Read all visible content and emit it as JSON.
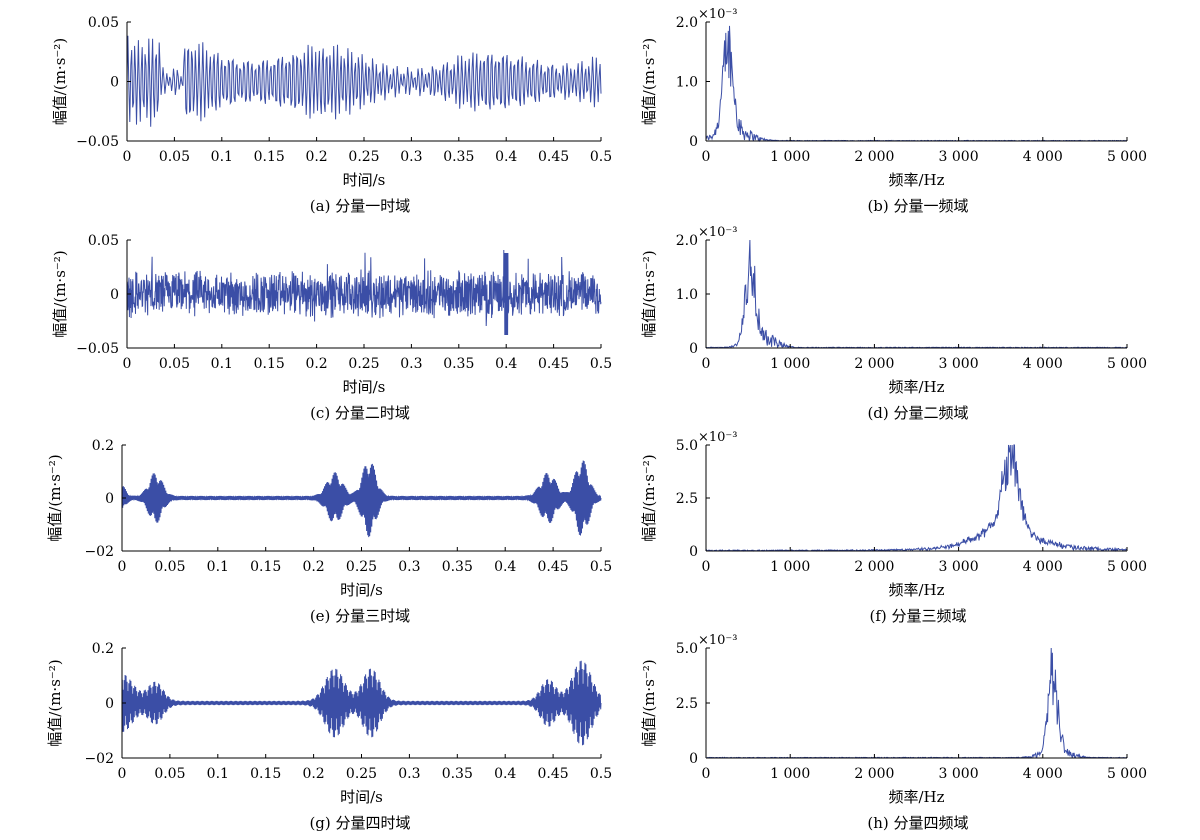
{
  "chart_data": [
    {
      "id": "a",
      "type": "line",
      "domain": "time",
      "caption": "(a) 分量一时域",
      "xlabel": "时间/s",
      "ylabel": "幅值/(m·s⁻²)",
      "xlim": [
        0,
        0.5
      ],
      "ylim": [
        -0.05,
        0.05
      ],
      "xticks": [
        "0",
        "0.05",
        "0.1",
        "0.15",
        "0.2",
        "0.25",
        "0.3",
        "0.35",
        "0.4",
        "0.45",
        "0.5"
      ],
      "yticks": [
        "0.05",
        "0",
        "−0.05"
      ],
      "series": [
        {
          "x": [
            0,
            0.05,
            0.1,
            0.15,
            0.2,
            0.25,
            0.3,
            0.35,
            0.4,
            0.45,
            0.5
          ],
          "y": [
            0.035,
            0.005,
            0.02,
            0.03,
            0.035,
            0.02,
            0.025,
            0.02,
            0.03,
            0.025,
            0.015
          ]
        }
      ]
    },
    {
      "id": "b",
      "type": "line",
      "domain": "freq",
      "caption": "(b) 分量一频域",
      "xlabel": "频率/Hz",
      "ylabel": "幅值/(m·s⁻²)",
      "multiplier": "×10⁻³",
      "xlim": [
        0,
        5000
      ],
      "ylim": [
        0,
        2.0
      ],
      "xticks": [
        "0",
        "1 000",
        "2 000",
        "3 000",
        "4 000",
        "5 000"
      ],
      "yticks": [
        "2.0",
        "1.0",
        "0"
      ],
      "series": [
        {
          "x": [
            100,
            200,
            250,
            300,
            400,
            600,
            1000
          ],
          "y": [
            0.2,
            1.2,
            2.0,
            1.4,
            0.5,
            0.1,
            0.02
          ]
        }
      ]
    },
    {
      "id": "c",
      "type": "line",
      "domain": "time",
      "caption": "(c) 分量二时域",
      "xlabel": "时间/s",
      "ylabel": "幅值/(m·s⁻²)",
      "xlim": [
        0,
        0.5
      ],
      "ylim": [
        -0.05,
        0.05
      ],
      "xticks": [
        "0",
        "0.05",
        "0.1",
        "0.15",
        "0.2",
        "0.25",
        "0.3",
        "0.35",
        "0.4",
        "0.45",
        "0.5"
      ],
      "yticks": [
        "0.05",
        "0",
        "−0.05"
      ],
      "series": [
        {
          "x": [
            0,
            0.1,
            0.2,
            0.3,
            0.4,
            0.5
          ],
          "y": [
            0.02,
            0.025,
            0.02,
            0.02,
            0.04,
            0.02
          ]
        }
      ]
    },
    {
      "id": "d",
      "type": "line",
      "domain": "freq",
      "caption": "(d) 分量二频域",
      "xlabel": "频率/Hz",
      "ylabel": "幅值/(m·s⁻²)",
      "multiplier": "×10⁻³",
      "xlim": [
        0,
        5000
      ],
      "ylim": [
        0,
        2.0
      ],
      "xticks": [
        "0",
        "1 000",
        "2 000",
        "3 000",
        "4 000",
        "5 000"
      ],
      "yticks": [
        "2.0",
        "1.0",
        "0"
      ],
      "series": [
        {
          "x": [
            300,
            450,
            530,
            600,
            700,
            1000
          ],
          "y": [
            0.2,
            1.2,
            2.0,
            1.0,
            0.3,
            0.05
          ]
        }
      ]
    },
    {
      "id": "e",
      "type": "line",
      "domain": "time",
      "caption": "(e) 分量三时域",
      "xlabel": "时间/s",
      "ylabel": "幅值/(m·s⁻²)",
      "xlim": [
        0,
        0.5
      ],
      "ylim": [
        -0.2,
        0.2
      ],
      "xticks": [
        "0",
        "0.05",
        "0.1",
        "0.15",
        "0.2",
        "0.25",
        "0.3",
        "0.35",
        "0.4",
        "0.45",
        "0.5"
      ],
      "yticks": [
        "0.2",
        "0",
        "−02"
      ],
      "series": [
        {
          "x": [
            0.035,
            0.22,
            0.26,
            0.445,
            0.48
          ],
          "y": [
            0.09,
            0.09,
            0.14,
            0.09,
            0.14
          ]
        }
      ]
    },
    {
      "id": "f",
      "type": "line",
      "domain": "freq",
      "caption": "(f) 分量三频域",
      "xlabel": "频率/Hz",
      "ylabel": "幅值/(m·s⁻²)",
      "multiplier": "×10⁻³",
      "xlim": [
        0,
        5000
      ],
      "ylim": [
        0,
        5.0
      ],
      "xticks": [
        "0",
        "1 000",
        "2 000",
        "3 000",
        "4 000",
        "5 000"
      ],
      "yticks": [
        "5.0",
        "2.5",
        "0"
      ],
      "series": [
        {
          "x": [
            2500,
            3000,
            3400,
            3600,
            3800,
            4200,
            5000
          ],
          "y": [
            0.1,
            0.4,
            1.5,
            5.0,
            1.5,
            0.3,
            0.1
          ]
        }
      ]
    },
    {
      "id": "g",
      "type": "line",
      "domain": "time",
      "caption": "(g)  分量四时域",
      "xlabel": "时间/s",
      "ylabel": "幅值/(m·s⁻²)",
      "xlim": [
        0,
        0.5
      ],
      "ylim": [
        -0.2,
        0.2
      ],
      "xticks": [
        "0",
        "0.05",
        "0.1",
        "0.15",
        "0.2",
        "0.25",
        "0.3",
        "0.35",
        "0.4",
        "0.45",
        "0.5"
      ],
      "yticks": [
        "0.2",
        "0",
        "−02"
      ],
      "series": [
        {
          "x": [
            0,
            0.035,
            0.22,
            0.26,
            0.445,
            0.48
          ],
          "y": [
            0.1,
            0.07,
            0.12,
            0.12,
            0.08,
            0.15
          ]
        }
      ]
    },
    {
      "id": "h",
      "type": "line",
      "domain": "freq",
      "caption": "(h) 分量四频域",
      "xlabel": "频率/Hz",
      "ylabel": "幅值/(m·s⁻²)",
      "multiplier": "×10⁻³",
      "xlim": [
        0,
        5000
      ],
      "ylim": [
        0,
        5.0
      ],
      "xticks": [
        "0",
        "1 000",
        "2 000",
        "3 000",
        "4 000",
        "5 000"
      ],
      "yticks": [
        "5.0",
        "2.5",
        "0"
      ],
      "series": [
        {
          "x": [
            3800,
            4000,
            4120,
            4250,
            4500,
            5000
          ],
          "y": [
            0.1,
            1.5,
            5.0,
            1.2,
            0.2,
            0.05
          ]
        }
      ]
    }
  ]
}
